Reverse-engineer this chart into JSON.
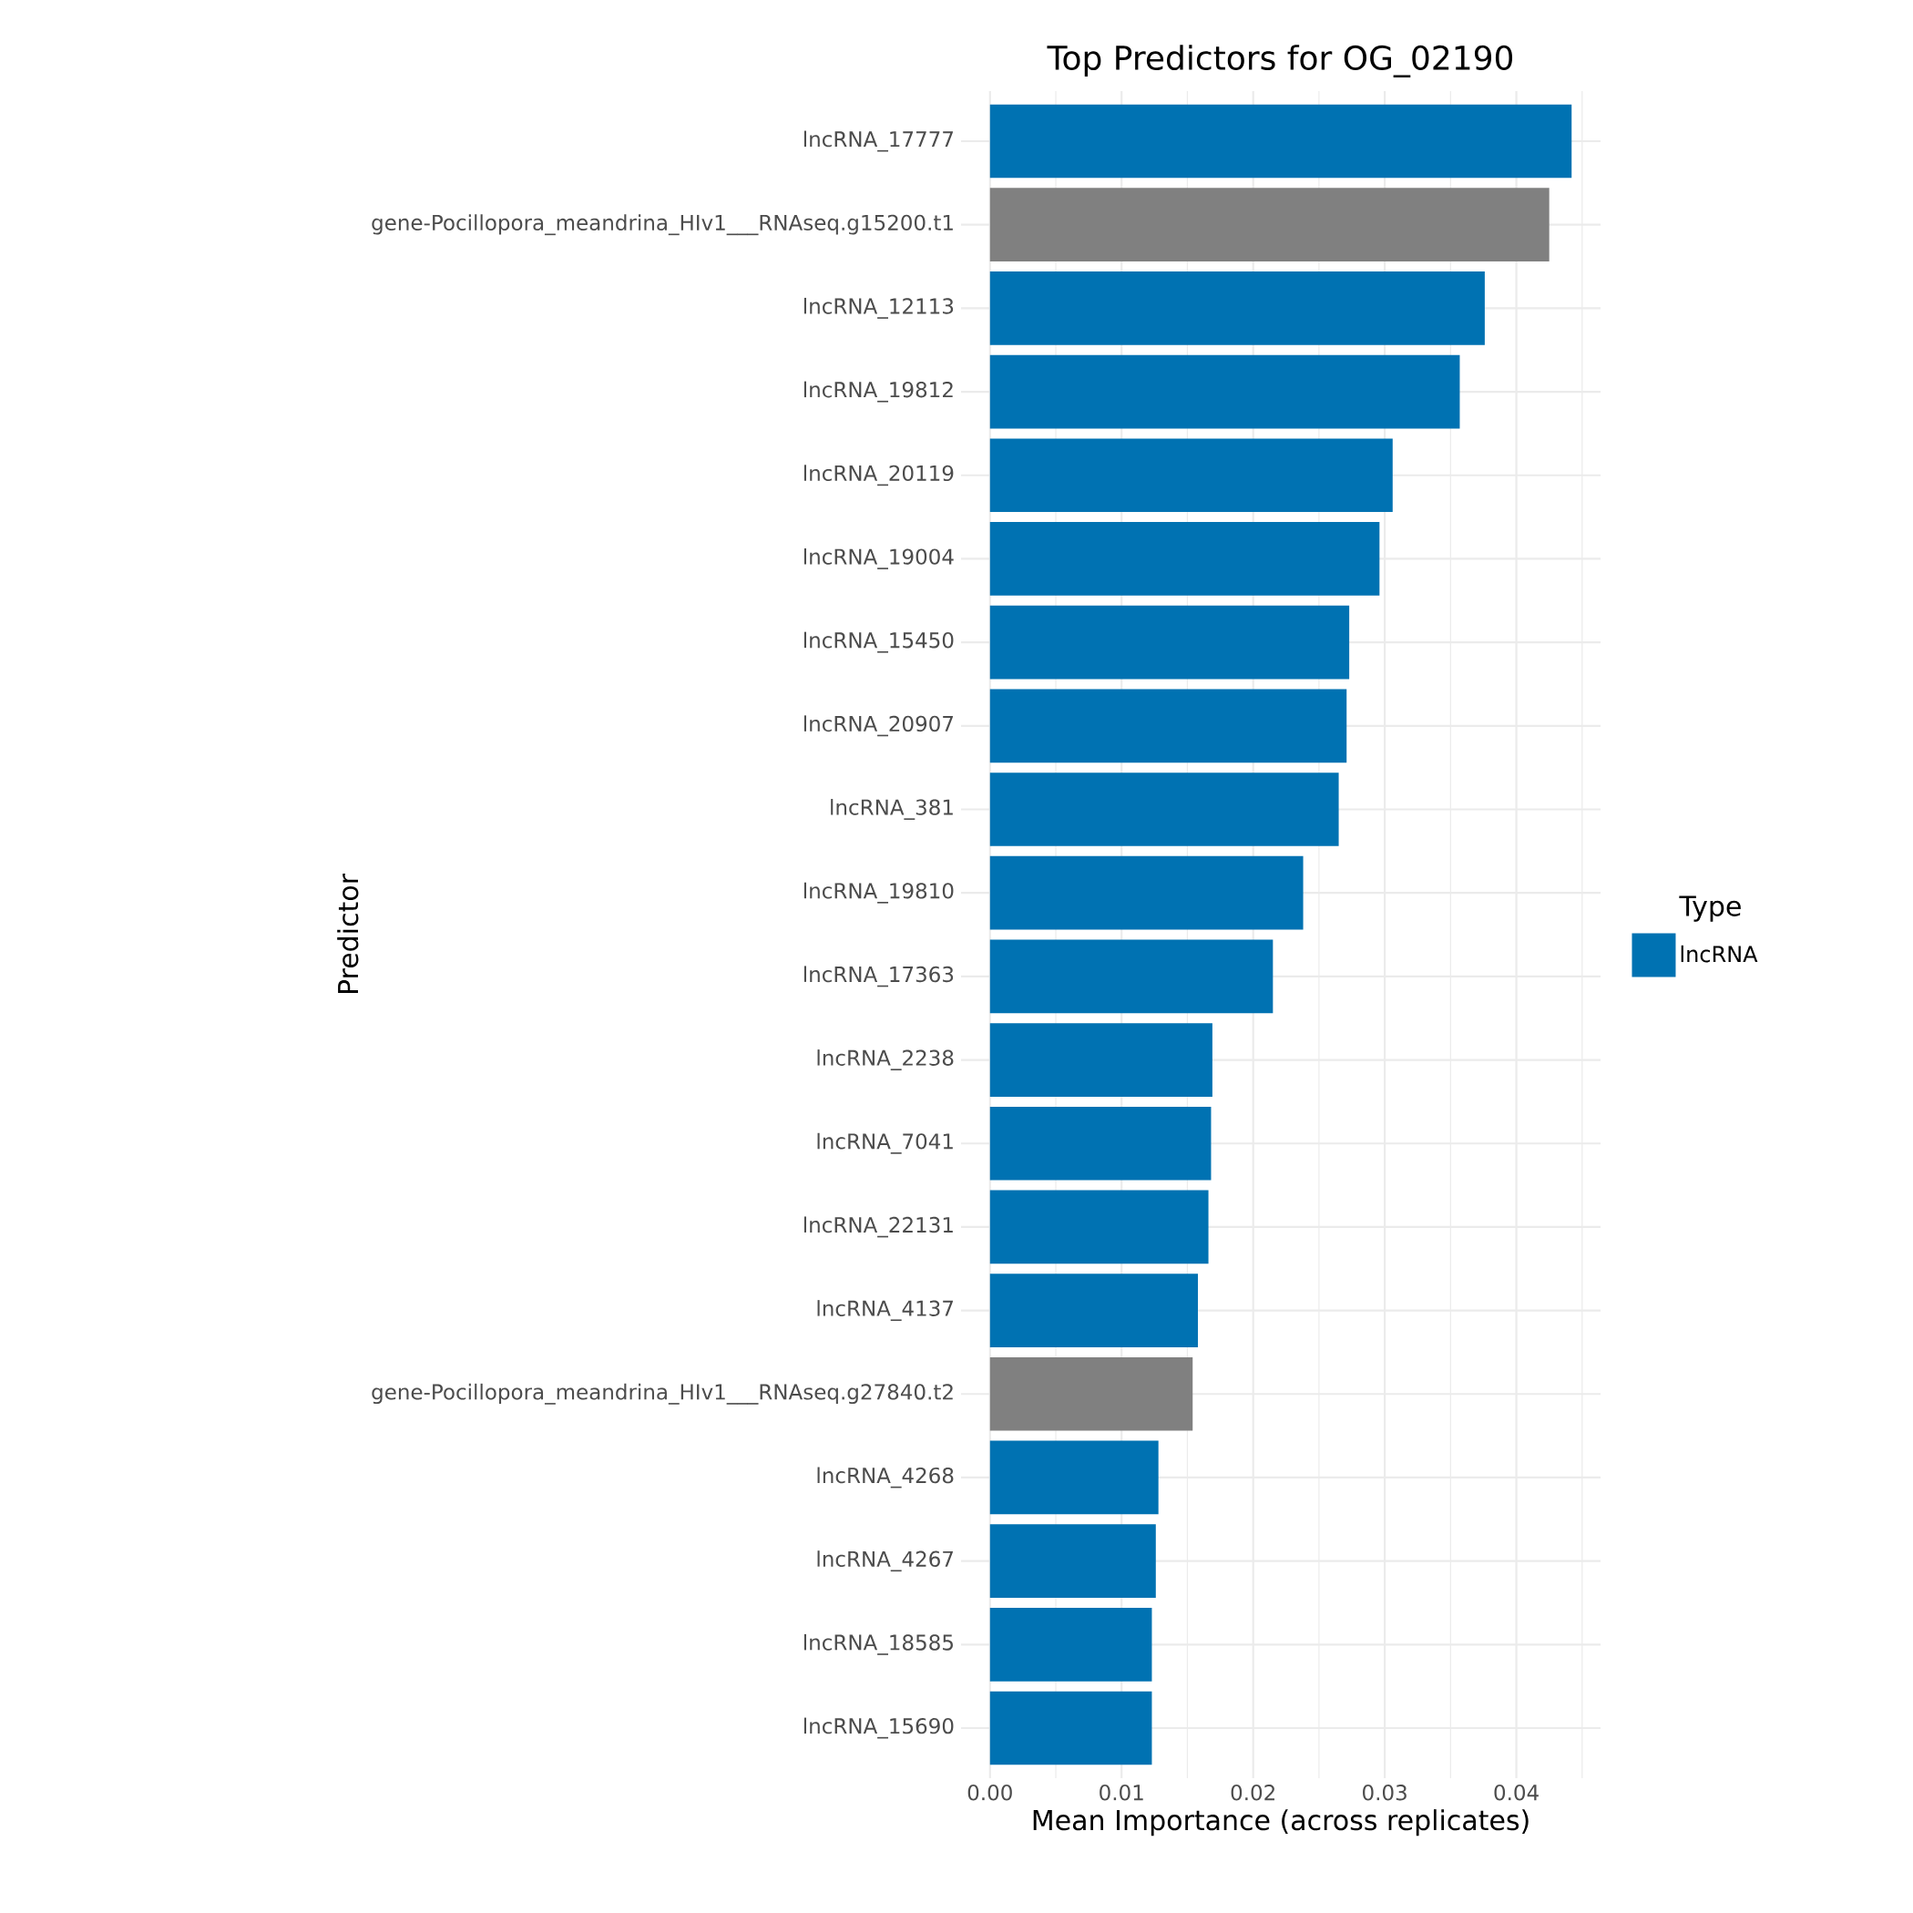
{
  "chart_data": {
    "type": "bar",
    "orientation": "horizontal",
    "title": "Top Predictors for OG_02190",
    "xlabel": "Mean Importance (across replicates)",
    "ylabel": "Predictor",
    "legend_title": "Type",
    "legend": "right",
    "grid": true,
    "categories": [
      "lncRNA_17777",
      "gene-Pocillopora_meandrina_HIv1___RNAseq.g15200.t1",
      "lncRNA_12113",
      "lncRNA_19812",
      "lncRNA_20119",
      "lncRNA_19004",
      "lncRNA_15450",
      "lncRNA_20907",
      "lncRNA_381",
      "lncRNA_19810",
      "lncRNA_17363",
      "lncRNA_2238",
      "lncRNA_7041",
      "lncRNA_22131",
      "lncRNA_4137",
      "gene-Pocillopora_meandrina_HIv1___RNAseq.g27840.t2",
      "lncRNA_4268",
      "lncRNA_4267",
      "lncRNA_18585",
      "lncRNA_15690"
    ],
    "series": [
      {
        "name": "lncRNA",
        "color": "#0072b2",
        "values": [
          0.0442,
          null,
          0.0376,
          0.0357,
          0.0306,
          0.0296,
          0.0273,
          0.0271,
          0.0265,
          0.0238,
          0.0215,
          0.0169,
          0.0168,
          0.0166,
          0.0158,
          null,
          0.0128,
          0.0126,
          0.0123,
          0.0123
        ]
      },
      {
        "color": "#808080",
        "values": [
          null,
          0.0425,
          null,
          null,
          null,
          null,
          null,
          null,
          null,
          null,
          null,
          null,
          null,
          null,
          null,
          0.0154,
          null,
          null,
          null,
          null
        ]
      }
    ],
    "xlim": [
      -0.0022,
      0.0464
    ],
    "xticks": [
      {
        "value": 0,
        "label": "0.00"
      },
      {
        "value": 0.005,
        "label": null
      },
      {
        "value": 0.01,
        "label": "0.01"
      },
      {
        "value": 0.015,
        "label": null
      },
      {
        "value": 0.02,
        "label": "0.02"
      },
      {
        "value": 0.025,
        "label": null
      },
      {
        "value": 0.03,
        "label": "0.03"
      },
      {
        "value": 0.035,
        "label": null
      },
      {
        "value": 0.04,
        "label": "0.04"
      },
      {
        "value": 0.045,
        "label": null
      }
    ]
  }
}
